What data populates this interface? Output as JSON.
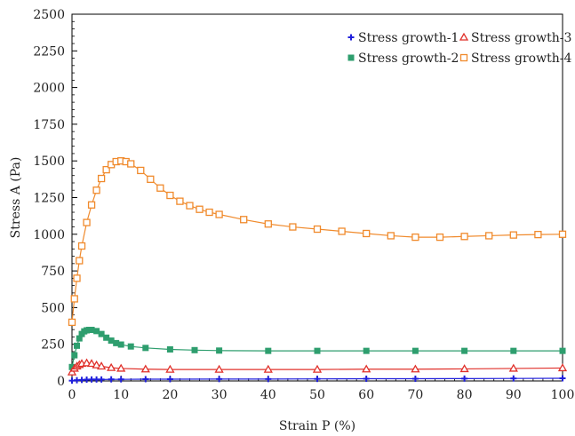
{
  "chart_data": {
    "type": "line",
    "title": "",
    "xlabel": "Strain  P (%)",
    "ylabel": "Stress  A  (Pa)",
    "xlim": [
      0,
      100
    ],
    "ylim": [
      0,
      2500
    ],
    "xticks": [
      0,
      10,
      20,
      30,
      40,
      50,
      60,
      70,
      80,
      90,
      100
    ],
    "yticks": [
      0,
      250,
      500,
      750,
      1000,
      1250,
      1500,
      1750,
      2000,
      2250,
      2500
    ],
    "grid": false,
    "legend_position": "top-right",
    "series": [
      {
        "name": "Stress growth-1",
        "color": "#1f1fdc",
        "marker": "plus",
        "x": [
          0,
          1,
          2,
          3,
          4,
          5,
          6,
          8,
          10,
          15,
          20,
          30,
          40,
          50,
          60,
          70,
          80,
          90,
          100
        ],
        "y": [
          2,
          5,
          7,
          9,
          10,
          10,
          10,
          11,
          11,
          12,
          12,
          13,
          13,
          14,
          15,
          15,
          16,
          17,
          18
        ]
      },
      {
        "name": "Stress growth-2",
        "color": "#2e9e6e",
        "marker": "square",
        "x": [
          0,
          0.5,
          1,
          1.5,
          2,
          2.5,
          3,
          3.5,
          4,
          5,
          6,
          7,
          8,
          9,
          10,
          12,
          15,
          20,
          25,
          30,
          40,
          50,
          60,
          70,
          80,
          90,
          100
        ],
        "y": [
          95,
          175,
          240,
          290,
          320,
          338,
          345,
          348,
          348,
          340,
          320,
          295,
          275,
          258,
          248,
          235,
          225,
          215,
          210,
          207,
          205,
          205,
          205,
          205,
          205,
          205,
          205
        ]
      },
      {
        "name": "Stress growth-3",
        "color": "#e0302a",
        "marker": "triangle",
        "x": [
          0,
          0.5,
          1,
          1.5,
          2,
          3,
          4,
          5,
          6,
          8,
          10,
          15,
          20,
          30,
          40,
          50,
          60,
          70,
          80,
          90,
          100
        ],
        "y": [
          60,
          85,
          100,
          110,
          118,
          122,
          118,
          108,
          100,
          90,
          85,
          80,
          78,
          78,
          78,
          78,
          80,
          80,
          82,
          85,
          88
        ]
      },
      {
        "name": "Stress growth-4",
        "color": "#f08a2c",
        "marker": "open-square",
        "x": [
          0,
          0.5,
          1,
          1.5,
          2,
          3,
          4,
          5,
          6,
          7,
          8,
          9,
          10,
          11,
          12,
          14,
          16,
          18,
          20,
          22,
          24,
          26,
          28,
          30,
          35,
          40,
          45,
          50,
          55,
          60,
          65,
          70,
          75,
          80,
          85,
          90,
          95,
          100
        ],
        "y": [
          400,
          560,
          700,
          820,
          920,
          1080,
          1200,
          1300,
          1380,
          1440,
          1475,
          1495,
          1500,
          1495,
          1480,
          1435,
          1375,
          1315,
          1265,
          1225,
          1195,
          1170,
          1150,
          1135,
          1100,
          1070,
          1050,
          1035,
          1020,
          1005,
          990,
          980,
          980,
          985,
          990,
          995,
          998,
          1000
        ]
      }
    ]
  }
}
